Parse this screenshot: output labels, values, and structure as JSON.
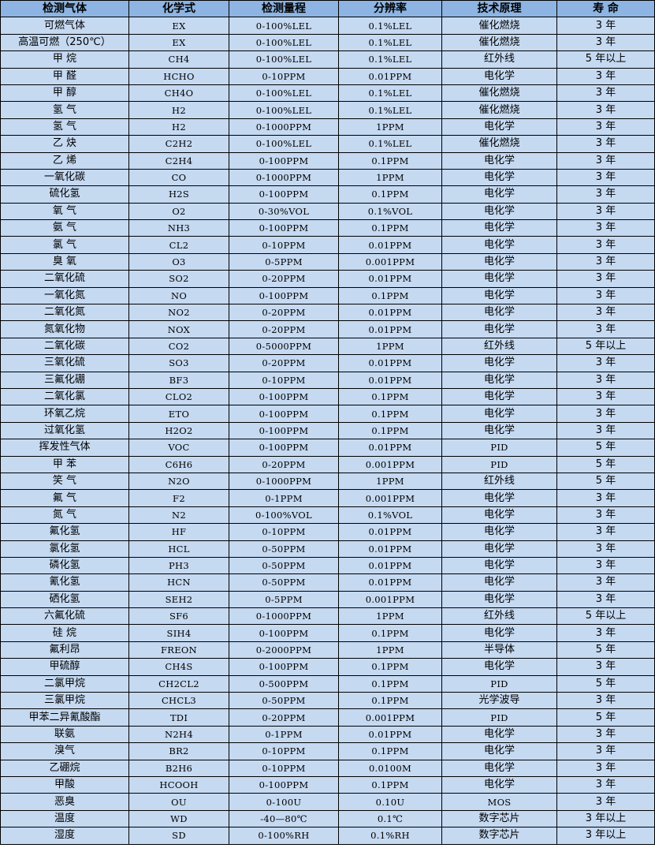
{
  "header": [
    "检测气体",
    "化学式",
    "检测量程",
    "分辨率",
    "技术原理",
    "寿 命"
  ],
  "rows": [
    [
      "可燃气体",
      "EX",
      "0-100%LEL",
      "0.1%LEL",
      "催化燃烧",
      "3 年"
    ],
    [
      "高温可燃（250℃）",
      "EX",
      "0-100%LEL",
      "0.1%LEL",
      "催化燃烧",
      "3 年"
    ],
    [
      "甲 烷",
      "CH4",
      "0-100%LEL",
      "0.1%LEL",
      "红外线",
      "5 年以上"
    ],
    [
      "甲 醛",
      "HCHO",
      "0-10PPM",
      "0.01PPM",
      "电化学",
      "3 年"
    ],
    [
      "甲 醇",
      "CH4O",
      "0-100%LEL",
      "0.1%LEL",
      "催化燃烧",
      "3 年"
    ],
    [
      "氢 气",
      "H2",
      "0-100%LEL",
      "0.1%LEL",
      "催化燃烧",
      "3 年"
    ],
    [
      "氢 气",
      "H2",
      "0-1000PPM",
      "1PPM",
      "电化学",
      "3 年"
    ],
    [
      "乙 炔",
      "C2H2",
      "0-100%LEL",
      "0.1%LEL",
      "催化燃烧",
      "3 年"
    ],
    [
      "乙 烯",
      "C2H4",
      "0-100PPM",
      "0.1PPM",
      "电化学",
      "3 年"
    ],
    [
      "一氧化碳",
      "CO",
      "0-1000PPM",
      "1PPM",
      "电化学",
      "3 年"
    ],
    [
      "硫化氢",
      "H2S",
      "0-100PPM",
      "0.1PPM",
      "电化学",
      "3 年"
    ],
    [
      "氧 气",
      "O2",
      "0-30%VOL",
      "0.1%VOL",
      "电化学",
      "3 年"
    ],
    [
      "氨 气",
      "NH3",
      "0-100PPM",
      "0.1PPM",
      "电化学",
      "3 年"
    ],
    [
      "氯 气",
      "CL2",
      "0-10PPM",
      "0.01PPM",
      "电化学",
      "3 年"
    ],
    [
      "臭 氧",
      "O3",
      "0-5PPM",
      "0.001PPM",
      "电化学",
      "3 年"
    ],
    [
      "二氧化硫",
      "SO2",
      "0-20PPM",
      "0.01PPM",
      "电化学",
      "3 年"
    ],
    [
      "一氧化氮",
      "NO",
      "0-100PPM",
      "0.1PPM",
      "电化学",
      "3 年"
    ],
    [
      "二氧化氮",
      "NO2",
      "0-20PPM",
      "0.01PPM",
      "电化学",
      "3 年"
    ],
    [
      "氮氧化物",
      "NOX",
      "0-20PPM",
      "0.01PPM",
      "电化学",
      "3 年"
    ],
    [
      "二氧化碳",
      "CO2",
      "0-5000PPM",
      "1PPM",
      "红外线",
      "5 年以上"
    ],
    [
      "三氧化硫",
      "SO3",
      "0-20PPM",
      "0.01PPM",
      "电化学",
      "3 年"
    ],
    [
      "三氟化硼",
      "BF3",
      "0-10PPM",
      "0.01PPM",
      "电化学",
      "3 年"
    ],
    [
      "二氧化氯",
      "CLO2",
      "0-100PPM",
      "0.1PPM",
      "电化学",
      "3 年"
    ],
    [
      "环氧乙烷",
      "ETO",
      "0-100PPM",
      "0.1PPM",
      "电化学",
      "3 年"
    ],
    [
      "过氧化氢",
      "H2O2",
      "0-100PPM",
      "0.1PPM",
      "电化学",
      "3 年"
    ],
    [
      "挥发性气体",
      "VOC",
      "0-100PPM",
      "0.01PPM",
      "PID",
      "5 年"
    ],
    [
      "甲 苯",
      "C6H6",
      "0-20PPM",
      "0.001PPM",
      "PID",
      "5 年"
    ],
    [
      "笑 气",
      "N2O",
      "0-1000PPM",
      "1PPM",
      "红外线",
      "5 年"
    ],
    [
      "氟 气",
      "F2",
      "0-1PPM",
      "0.001PPM",
      "电化学",
      "3 年"
    ],
    [
      "氮 气",
      "N2",
      "0-100%VOL",
      "0.1%VOL",
      "电化学",
      "3 年"
    ],
    [
      "氟化氢",
      "HF",
      "0-10PPM",
      "0.01PPM",
      "电化学",
      "3 年"
    ],
    [
      "氯化氢",
      "HCL",
      "0-50PPM",
      "0.01PPM",
      "电化学",
      "3 年"
    ],
    [
      "磷化氢",
      "PH3",
      "0-50PPM",
      "0.01PPM",
      "电化学",
      "3 年"
    ],
    [
      "氰化氢",
      "HCN",
      "0-50PPM",
      "0.01PPM",
      "电化学",
      "3 年"
    ],
    [
      "硒化氢",
      "SEH2",
      "0-5PPM",
      "0.001PPM",
      "电化学",
      "3 年"
    ],
    [
      "六氟化硫",
      "SF6",
      "0-1000PPM",
      "1PPM",
      "红外线",
      "5 年以上"
    ],
    [
      "硅 烷",
      "SIH4",
      "0-100PPM",
      "0.1PPM",
      "电化学",
      "3 年"
    ],
    [
      "氟利昂",
      "FREON",
      "0-2000PPM",
      "1PPM",
      "半导体",
      "5 年"
    ],
    [
      "甲硫醇",
      "CH4S",
      "0-100PPM",
      "0.1PPM",
      "电化学",
      "3 年"
    ],
    [
      "二氯甲烷",
      "CH2CL2",
      "0-500PPM",
      "0.1PPM",
      "PID",
      "5 年"
    ],
    [
      "三氯甲烷",
      "CHCL3",
      "0-50PPM",
      "0.1PPM",
      "光学波导",
      "3 年"
    ],
    [
      "甲苯二异氰酸酯",
      "TDI",
      "0-20PPM",
      "0.001PPM",
      "PID",
      "5 年"
    ],
    [
      "联氨",
      "N2H4",
      "0-1PPM",
      "0.01PPM",
      "电化学",
      "3 年"
    ],
    [
      "溴气",
      "BR2",
      "0-10PPM",
      "0.1PPM",
      "电化学",
      "3 年"
    ],
    [
      "乙硼烷",
      "B2H6",
      "0-10PPM",
      "0.0100M",
      "电化学",
      "3 年"
    ],
    [
      "甲酸",
      "HCOOH",
      "0-100PPM",
      "0.1PPM",
      "电化学",
      "3 年"
    ],
    [
      "恶臭",
      "OU",
      "0-100U",
      "0.10U",
      "MOS",
      "3 年"
    ],
    [
      "温度",
      "WD",
      "-40—80℃",
      "0.1℃",
      "数字芯片",
      "3 年以上"
    ],
    [
      "湿度",
      "SD",
      "0-100%RH",
      "0.1%RH",
      "数字芯片",
      "3 年以上"
    ]
  ],
  "colors": {
    "header_bg": "#8db4e2",
    "cell_bg": "#c5d9f1",
    "border": "#000000"
  }
}
